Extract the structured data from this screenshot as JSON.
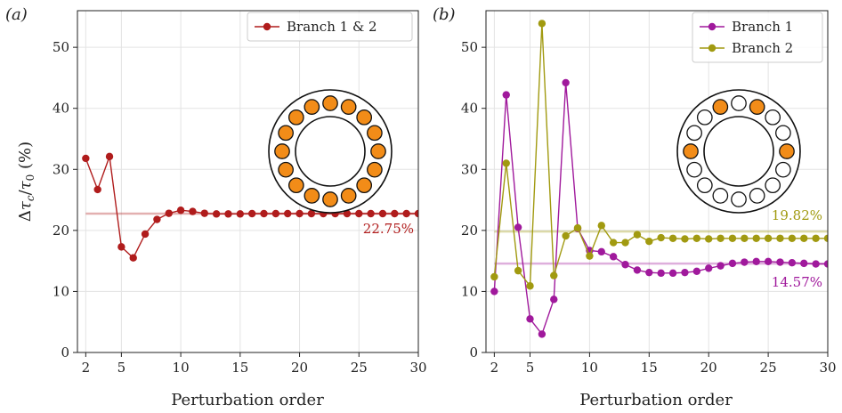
{
  "chart_data": [
    {
      "type": "line",
      "panel_label": "(a)",
      "xlabel": "Perturbation order",
      "ylabel": "Δτ_c/τ_0 (%)",
      "xlim": [
        1.3,
        30
      ],
      "ylim": [
        0,
        56
      ],
      "xticks": [
        2,
        5,
        10,
        15,
        20,
        25,
        30
      ],
      "yticks": [
        0,
        10,
        20,
        30,
        40,
        50
      ],
      "grid": true,
      "legend_position": "top-right",
      "series": [
        {
          "name": "Branch 1 & 2",
          "color": "#b01c1c",
          "x": [
            2,
            3,
            4,
            5,
            6,
            7,
            8,
            9,
            10,
            11,
            12,
            13,
            14,
            15,
            16,
            17,
            18,
            19,
            20,
            21,
            22,
            23,
            24,
            25,
            26,
            27,
            28,
            29,
            30
          ],
          "y": [
            31.8,
            26.7,
            32.1,
            17.3,
            15.5,
            19.4,
            21.8,
            22.8,
            23.3,
            23.1,
            22.8,
            22.7,
            22.7,
            22.7,
            22.75,
            22.75,
            22.75,
            22.75,
            22.75,
            22.75,
            22.75,
            22.75,
            22.75,
            22.75,
            22.75,
            22.75,
            22.75,
            22.75,
            22.75
          ]
        }
      ],
      "reference_lines": [
        {
          "value": 22.75,
          "label": "22.75%",
          "color": "#b01c1c"
        }
      ],
      "inset": {
        "ring_circles": 16,
        "filled": [
          true,
          true,
          true,
          true,
          true,
          true,
          true,
          true,
          true,
          true,
          true,
          true,
          true,
          true,
          true,
          true
        ],
        "fill_color": "#f28c18"
      }
    },
    {
      "type": "line",
      "panel_label": "(b)",
      "xlabel": "Perturbation order",
      "xlim": [
        1.3,
        30
      ],
      "ylim": [
        0,
        56
      ],
      "xticks": [
        2,
        5,
        10,
        15,
        20,
        25,
        30
      ],
      "yticks": [
        0,
        10,
        20,
        30,
        40,
        50
      ],
      "grid": true,
      "legend_position": "top-right",
      "series": [
        {
          "name": "Branch 1",
          "color": "#a0199c",
          "x": [
            2,
            3,
            4,
            5,
            6,
            7,
            8,
            9,
            10,
            11,
            12,
            13,
            14,
            15,
            16,
            17,
            18,
            19,
            20,
            21,
            22,
            23,
            24,
            25,
            26,
            27,
            28,
            29,
            30
          ],
          "y": [
            10.0,
            42.2,
            20.5,
            5.5,
            3.0,
            8.7,
            44.2,
            20.3,
            16.7,
            16.5,
            15.7,
            14.4,
            13.5,
            13.1,
            13.0,
            13.0,
            13.1,
            13.3,
            13.8,
            14.2,
            14.6,
            14.8,
            14.9,
            14.9,
            14.8,
            14.7,
            14.6,
            14.5,
            14.5
          ]
        },
        {
          "name": "Branch 2",
          "color": "#a19a10",
          "x": [
            2,
            3,
            4,
            5,
            6,
            7,
            8,
            9,
            10,
            11,
            12,
            13,
            14,
            15,
            16,
            17,
            18,
            19,
            20,
            21,
            22,
            23,
            24,
            25,
            26,
            27,
            28,
            29,
            30
          ],
          "y": [
            12.4,
            31.0,
            13.4,
            10.9,
            53.9,
            12.6,
            19.1,
            20.4,
            15.8,
            20.8,
            18.0,
            18.0,
            19.3,
            18.2,
            18.8,
            18.7,
            18.6,
            18.7,
            18.6,
            18.7,
            18.7,
            18.7,
            18.7,
            18.7,
            18.7,
            18.7,
            18.7,
            18.7,
            18.7
          ]
        }
      ],
      "reference_lines": [
        {
          "value": 14.57,
          "label": "14.57%",
          "color": "#a0199c"
        },
        {
          "value": 19.82,
          "label": "19.82%",
          "color": "#a19a10"
        }
      ],
      "inset": {
        "ring_circles": 16,
        "filled": [
          false,
          true,
          false,
          false,
          true,
          false,
          false,
          false,
          false,
          false,
          false,
          false,
          true,
          false,
          false,
          true
        ],
        "fill_color": "#f28c18"
      }
    }
  ]
}
